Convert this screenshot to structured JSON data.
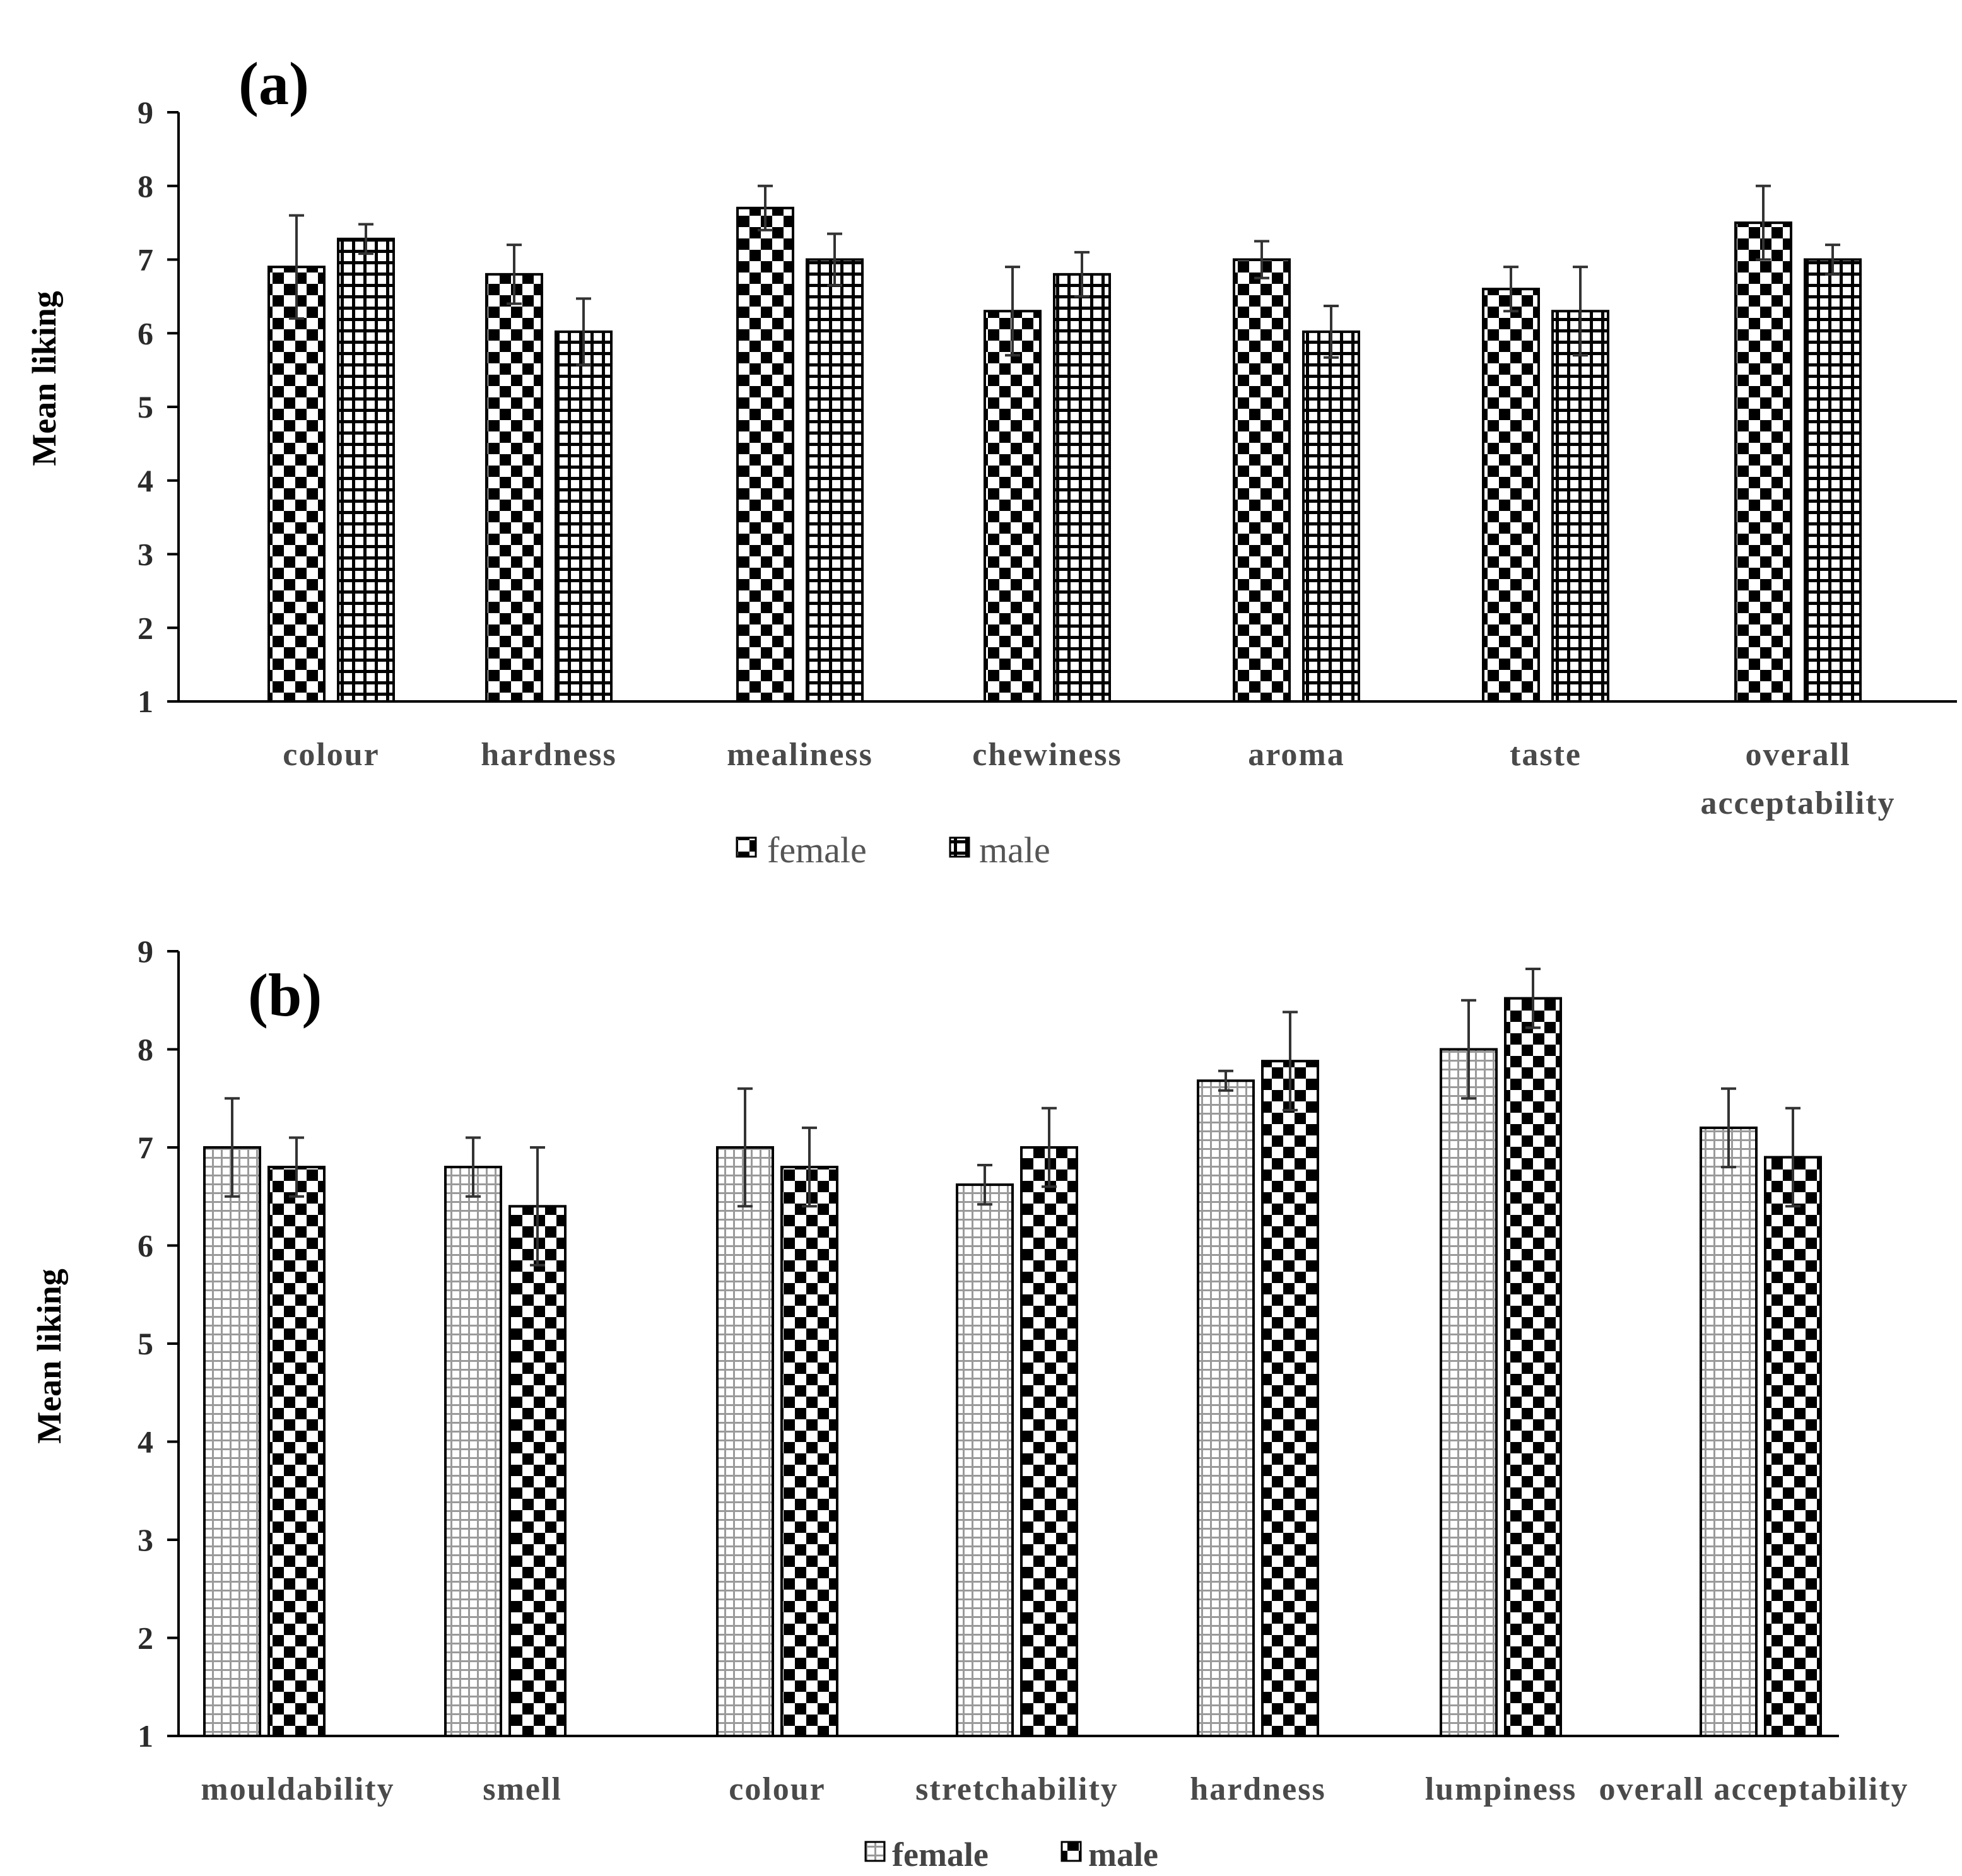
{
  "chart_data": [
    {
      "type": "bar",
      "panel": "(a)",
      "ylabel": "Mean liking",
      "ylim": [
        1,
        9
      ],
      "yticks": [
        "1",
        "2",
        "3",
        "4",
        "5",
        "6",
        "7",
        "8",
        "9"
      ],
      "categories": [
        "colour",
        "hardness",
        "mealiness",
        "chewiness",
        "aroma",
        "taste",
        "overall acceptability"
      ],
      "series": [
        {
          "name": "female",
          "pattern": "checker",
          "values": [
            6.9,
            6.8,
            7.7,
            6.3,
            7.0,
            6.6,
            7.5
          ],
          "errors": [
            0.7,
            0.4,
            0.3,
            0.6,
            0.25,
            0.3,
            0.5
          ]
        },
        {
          "name": "male",
          "pattern": "grid",
          "values": [
            7.28,
            6.02,
            7.0,
            6.8,
            6.02,
            6.3,
            7.0
          ],
          "errors": [
            0.2,
            0.45,
            0.35,
            0.3,
            0.35,
            0.6,
            0.2
          ]
        }
      ],
      "legend": "bottom",
      "grid": false
    },
    {
      "type": "bar",
      "panel": "(b)",
      "ylabel": "Mean liking",
      "ylim": [
        1,
        9
      ],
      "yticks": [
        "1",
        "2",
        "3",
        "4",
        "5",
        "6",
        "7",
        "8",
        "9"
      ],
      "categories": [
        "mouldability",
        "smell",
        "colour",
        "stretchability",
        "hardness",
        "lumpiness",
        "overall acceptability"
      ],
      "series": [
        {
          "name": "female",
          "pattern": "fine-grid",
          "values": [
            7.0,
            6.8,
            7.0,
            6.62,
            7.68,
            8.0,
            7.2
          ],
          "errors": [
            0.5,
            0.3,
            0.6,
            0.2,
            0.1,
            0.5,
            0.4
          ]
        },
        {
          "name": "male",
          "pattern": "checker",
          "values": [
            6.8,
            6.4,
            6.8,
            7.0,
            7.88,
            8.52,
            6.9
          ],
          "errors": [
            0.3,
            0.6,
            0.4,
            0.4,
            0.5,
            0.3,
            0.5
          ]
        }
      ],
      "legend": "bottom",
      "grid": false
    }
  ]
}
